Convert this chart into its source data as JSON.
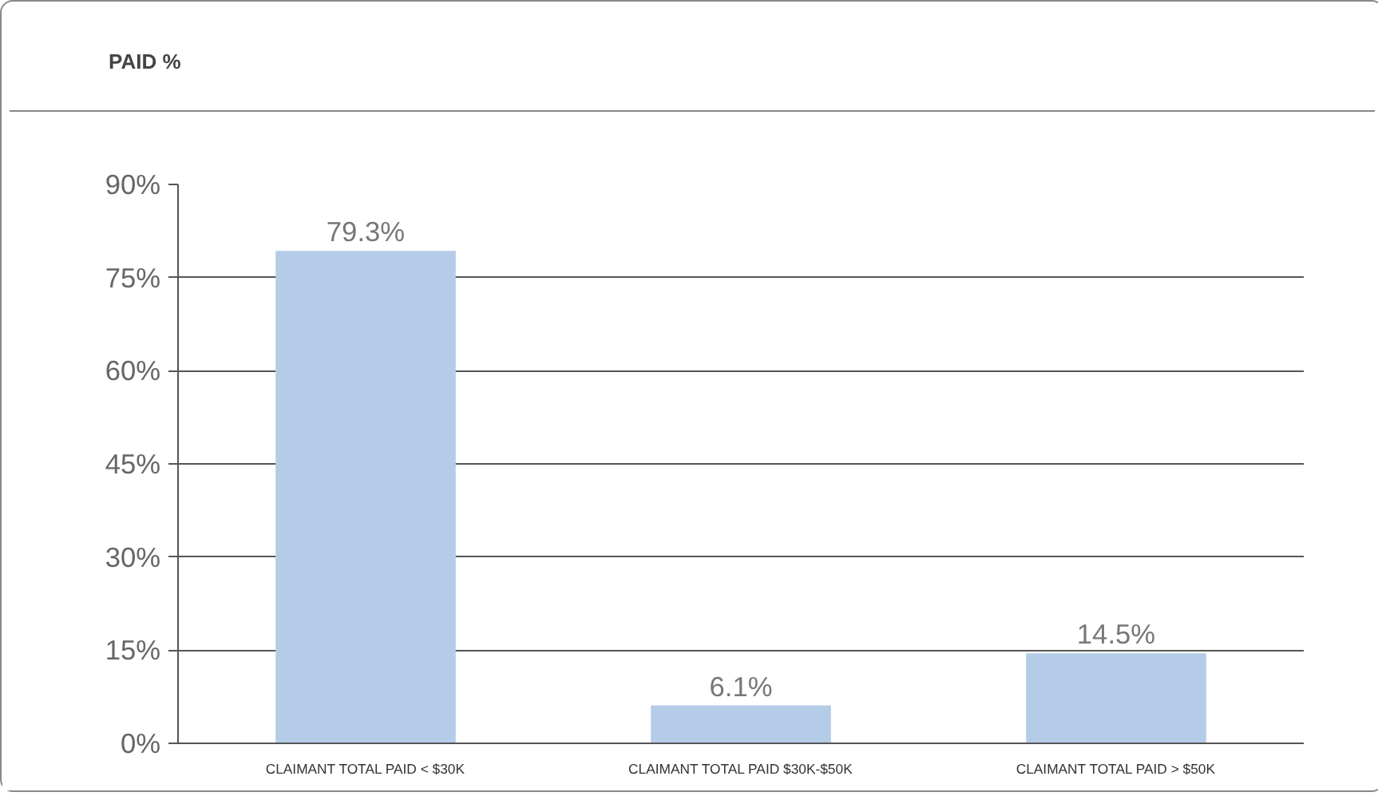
{
  "chart_data": {
    "type": "bar",
    "title": "PAID %",
    "categories": [
      "CLAIMANT TOTAL PAID < $30K",
      "CLAIMANT TOTAL PAID $30K-$50K",
      "CLAIMANT TOTAL PAID > $50K"
    ],
    "values": [
      79.3,
      6.1,
      14.5
    ],
    "color": "#b4cce8",
    "ylim": [
      0,
      90
    ],
    "yticks": [
      {
        "value": 0,
        "label": "0%"
      },
      {
        "value": 15,
        "label": "15%"
      },
      {
        "value": 30,
        "label": "30%"
      },
      {
        "value": 45,
        "label": "45%"
      },
      {
        "value": 60,
        "label": "60%"
      },
      {
        "value": 75,
        "label": "75%"
      },
      {
        "value": 90,
        "label": "90%"
      }
    ],
    "value_labels": [
      "79.3%",
      "6.1%",
      "14.5%"
    ],
    "grid": "y"
  }
}
